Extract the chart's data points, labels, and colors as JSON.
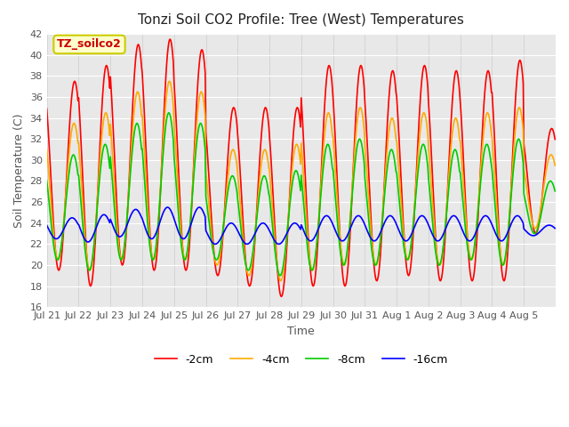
{
  "title": "Tonzi Soil CO2 Profile: Tree (West) Temperatures",
  "xlabel": "Time",
  "ylabel": "Soil Temperature (C)",
  "ylim": [
    16,
    42
  ],
  "series_labels": [
    "-2cm",
    "-4cm",
    "-8cm",
    "-16cm"
  ],
  "series_colors": [
    "#ff0000",
    "#ffaa00",
    "#00cc00",
    "#0000ff"
  ],
  "series_linewidths": [
    1.2,
    1.2,
    1.2,
    1.2
  ],
  "legend_label": "TZ_soilco2",
  "legend_bbox_facecolor": "#ffffcc",
  "legend_bbox_edgecolor": "#cccc00",
  "plot_bg_color": "#e8e8e8",
  "tick_labels": [
    "Jul 21",
    "Jul 22",
    "Jul 23",
    "Jul 24",
    "Jul 25",
    "Jul 26",
    "Jul 27",
    "Jul 28",
    "Jul 29",
    "Jul 30",
    "Jul 31",
    "Aug 1",
    "Aug 2",
    "Aug 3",
    "Aug 4",
    "Aug 5"
  ],
  "n_days": 16,
  "points_per_day": 48,
  "red_means": [
    28.5,
    28.5,
    30.5,
    30.5,
    30.0,
    27.0,
    26.5,
    26.0,
    28.5,
    28.5,
    28.5,
    29.0,
    28.5,
    28.5,
    29.0,
    28.0
  ],
  "red_amps": [
    9.0,
    10.5,
    10.5,
    11.0,
    10.5,
    8.0,
    8.5,
    9.0,
    10.5,
    10.5,
    10.0,
    10.0,
    10.0,
    10.0,
    10.5,
    5.0
  ],
  "orange_means": [
    27.0,
    27.0,
    28.5,
    29.0,
    28.5,
    25.5,
    25.0,
    25.0,
    27.0,
    27.5,
    27.0,
    27.5,
    27.0,
    27.5,
    27.5,
    27.0
  ],
  "orange_amps": [
    6.5,
    7.5,
    8.0,
    8.5,
    8.0,
    5.5,
    6.0,
    6.5,
    7.5,
    7.5,
    7.0,
    7.0,
    7.0,
    7.0,
    7.5,
    3.5
  ],
  "green_means": [
    25.5,
    25.5,
    27.0,
    27.5,
    27.0,
    24.5,
    24.0,
    24.0,
    25.5,
    26.0,
    25.5,
    26.0,
    25.5,
    26.0,
    26.0,
    25.5
  ],
  "green_amps": [
    5.0,
    6.0,
    6.5,
    7.0,
    6.5,
    4.0,
    4.5,
    5.0,
    6.0,
    6.0,
    5.5,
    5.5,
    5.5,
    5.5,
    6.0,
    2.5
  ],
  "blue_means": [
    23.5,
    23.5,
    24.0,
    24.0,
    24.0,
    23.0,
    23.0,
    23.0,
    23.5,
    23.5,
    23.5,
    23.5,
    23.5,
    23.5,
    23.5,
    23.3
  ],
  "blue_amps": [
    1.0,
    1.3,
    1.3,
    1.5,
    1.5,
    1.0,
    1.0,
    1.0,
    1.2,
    1.2,
    1.2,
    1.2,
    1.2,
    1.2,
    1.2,
    0.5
  ]
}
